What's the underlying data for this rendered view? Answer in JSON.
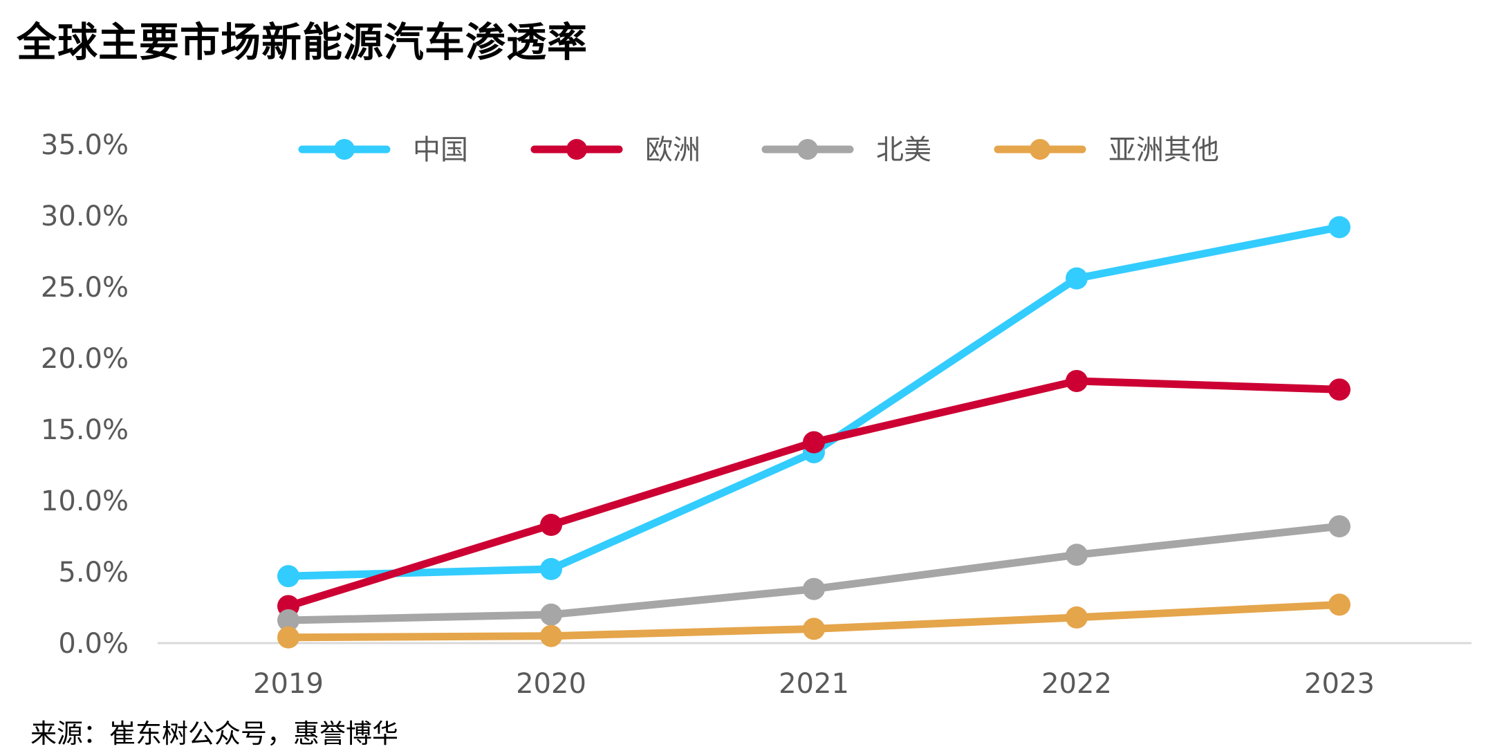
{
  "title": "全球主要市场新能源汽车渗透率",
  "source": "来源：崔东树公众号，惠誉博华",
  "chart_data": {
    "type": "line",
    "title": "全球主要市场新能源汽车渗透率",
    "categories": [
      "2019",
      "2020",
      "2021",
      "2022",
      "2023"
    ],
    "ylim": [
      0,
      35
    ],
    "yticks": [
      0,
      5,
      10,
      15,
      20,
      25,
      30,
      35
    ],
    "ytick_labels": [
      "0.0%",
      "5.0%",
      "10.0%",
      "15.0%",
      "20.0%",
      "25.0%",
      "30.0%",
      "35.0%"
    ],
    "grid": false,
    "legend_position": "top",
    "series": [
      {
        "name": "中国",
        "color": "#33CCFF",
        "values": [
          4.7,
          5.2,
          13.4,
          25.6,
          29.2
        ]
      },
      {
        "name": "欧洲",
        "color": "#CC0033",
        "values": [
          2.6,
          8.3,
          14.1,
          18.4,
          17.8
        ]
      },
      {
        "name": "北美",
        "color": "#A6A6A6",
        "values": [
          1.6,
          2.0,
          3.8,
          6.2,
          8.2
        ]
      },
      {
        "name": "亚洲其他",
        "color": "#E5A54B",
        "values": [
          0.4,
          0.5,
          1.0,
          1.8,
          2.7
        ]
      }
    ]
  }
}
